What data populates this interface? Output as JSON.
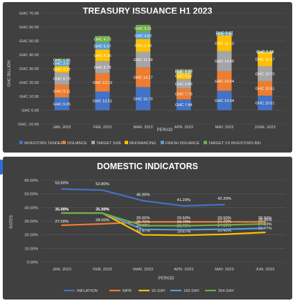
{
  "chart_data": [
    {
      "type": "bar",
      "stacked": true,
      "title": "TREASURY ISSUANCE H1 2023",
      "xlabel": "PERIOD",
      "ylabel": "GHC BILLION",
      "ylim": [
        -10,
        70
      ],
      "yticks": [
        "GHC -10.00",
        "GHC 0.00",
        "GHC 10.00",
        "GHC 20.00",
        "GHC 30.00",
        "GHC 40.00",
        "GHC 50.00",
        "GHC 60.00",
        "GHC 70.00"
      ],
      "grid": true,
      "legend_position": "bottom",
      "categories": [
        "JAN. 2023",
        "FEB. 2023",
        "MAR. 2023",
        "APR. 2023",
        "MAY. 2023",
        "JUNE. 2023"
      ],
      "series": [
        {
          "name": "INVESTORS TENDER",
          "color": "#4472c4",
          "values": [
            9.25,
            13.51,
            16.7,
            7.84,
            14.04,
            10.51
          ],
          "labels": [
            "GHC 9.25",
            "GHC 13.51",
            "GHC 16.70",
            "GHC 7.84",
            "GHC 14.04",
            "GHC 10.51"
          ]
        },
        {
          "name": "ISSUANCE",
          "color": "#ed7d31",
          "values": [
            9.11,
            13.13,
            14.17,
            7.78,
            14.04,
            10.51
          ],
          "labels": [
            "GHC 9.11",
            "GHC 13.13",
            "GHC 14.17",
            "GHC 7.78",
            "GHC 14.04",
            "GHC 10.51"
          ]
        },
        {
          "name": "TARGET SIZE",
          "color": "#a5a5a5",
          "values": [
            8.79,
            8.78,
            11.39,
            6.85,
            14.66,
            10.7
          ],
          "labels": [
            "GHC 8.79",
            "GHC 8.78",
            "GHC 11.39",
            "GHC 6.85",
            "GHC 14.66",
            "GHC 10.70"
          ]
        },
        {
          "name": "REFINANCING",
          "color": "#ffc000",
          "values": [
            4.72,
            8.35,
            9.16,
            4.52,
            11.13,
            10.17
          ],
          "labels": [
            "GHC 4.72",
            "GHC 8.35",
            "GHC 9.16",
            "GHC 4.52",
            "GHC 11.13",
            "GHC 10.17"
          ]
        },
        {
          "name": "FRESH ISSUANCE",
          "color": "#5b9bd5",
          "values": [
            3.97,
            5.07,
            4.82,
            1.09,
            1.81,
            0.34
          ],
          "labels": [
            "GHC 3.97",
            "GHC 5.07",
            "GHC 4.82",
            "GHC 1.09",
            "GHC 1.81",
            "GHC 0.34"
          ]
        },
        {
          "name": "TARGET VS INVESTORS BID",
          "color": "#70ad47",
          "values": [
            1.06,
            4.73,
            5.31,
            0.99,
            0.62,
            0.19
          ],
          "labels": [
            "GHC 1.06",
            "GHC 4.73",
            "GHC 5.31",
            "GHC 0.99",
            "GHC 0.62",
            "GHC 0.19"
          ]
        }
      ]
    },
    {
      "type": "line",
      "title": "DOMESTIC INDICATORS",
      "xlabel": "PERIOD",
      "ylabel": "RATES",
      "ylim": [
        0,
        60
      ],
      "yticks": [
        "0.00%",
        "10.00%",
        "20.00%",
        "30.00%",
        "40.00%",
        "50.00%",
        "60.00%"
      ],
      "grid": true,
      "legend_position": "bottom",
      "categories": [
        "JAN. 2023",
        "FEB. 2023",
        "MAR. 2023",
        "APR. 2023",
        "MAY. 2023",
        "JUN. 2023"
      ],
      "series": [
        {
          "name": "INFLATION",
          "color": "#4472c4",
          "values": [
            53.6,
            52.8,
            45.0,
            41.2,
            42.2,
            null
          ],
          "labels": [
            "53.60%",
            "52.80%",
            "45.00%",
            "41.20%",
            "42.20%",
            ""
          ]
        },
        {
          "name": "MPR",
          "color": "#ed7d31",
          "values": [
            27.0,
            28.0,
            29.5,
            29.5,
            29.5,
            29.5
          ],
          "labels": [
            "27.00%",
            "28.00%",
            "29.50%",
            "29.50%",
            "29.50%",
            "29.50%"
          ]
        },
        {
          "name": "91-DAY",
          "color": "#ffc000",
          "values": [
            35.88,
            35.88,
            19.97,
            19.67,
            20.4,
            21.77
          ],
          "labels": [
            "35.88%",
            "35.88%",
            "19.97%",
            "19.67%",
            "20.40%",
            "21.77%"
          ]
        },
        {
          "name": "182-DAY",
          "color": "#5b9bd5",
          "values": [
            35.88,
            35.88,
            24.0,
            23.7,
            24.1,
            24.83
          ],
          "labels": [
            "35.88%",
            "35.88%",
            "24.00%",
            "23.70%",
            "24.10%",
            "24.83%"
          ]
        },
        {
          "name": "364-DAY",
          "color": "#70ad47",
          "values": [
            35.88,
            35.88,
            26.71,
            26.7,
            27.2,
            28.0
          ],
          "labels": [
            "35.88%",
            "35.88%",
            "26.71%",
            "26.70%",
            "27.20%",
            "28.00%"
          ]
        }
      ]
    }
  ]
}
